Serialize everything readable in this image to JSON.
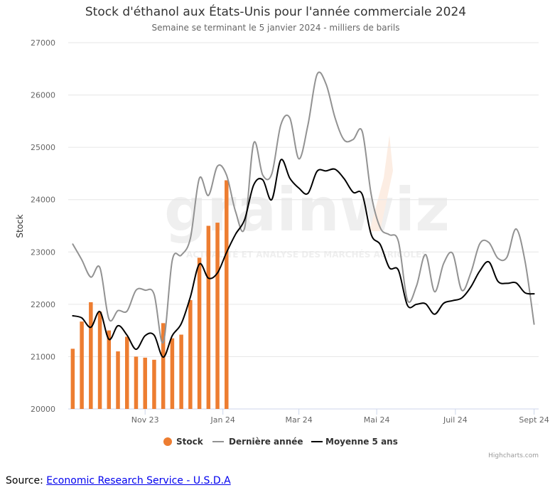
{
  "chart_data": {
    "type": "bar+line",
    "title": "Stock d'éthanol aux États-Unis pour l'année commerciale 2024",
    "subtitle": "Semaine se terminant le 5 janvier 2024 - milliers de barils",
    "ylabel": "Stock",
    "ylim": [
      20000,
      27000
    ],
    "yticks": [
      "20000",
      "21000",
      "22000",
      "23000",
      "24000",
      "25000",
      "26000",
      "27000"
    ],
    "xticks": [
      {
        "label": "Nov 23",
        "week": 9
      },
      {
        "label": "Jan 24",
        "week": 17.6
      },
      {
        "label": "Mar 24",
        "week": 26
      },
      {
        "label": "Mai 24",
        "week": 34.6
      },
      {
        "label": "Juil 24",
        "week": 43.3
      },
      {
        "label": "Sept 24",
        "week": 52
      }
    ],
    "series": [
      {
        "name": "Stock",
        "kind": "bar",
        "color": "#ed7d31",
        "values": [
          21150,
          21670,
          22040,
          21860,
          21500,
          21100,
          21380,
          21000,
          20980,
          20940,
          21640,
          21350,
          21420,
          22080,
          22890,
          23500,
          23560,
          24370
        ]
      },
      {
        "name": "Dernière année",
        "kind": "line",
        "color": "#929292",
        "values": [
          23150,
          22850,
          22520,
          22700,
          21720,
          21880,
          21870,
          22270,
          22270,
          22190,
          21270,
          22840,
          22940,
          23260,
          24410,
          24080,
          24640,
          24470,
          23770,
          23460,
          25080,
          24470,
          24490,
          25430,
          25560,
          24780,
          25430,
          26390,
          26210,
          25560,
          25140,
          25150,
          25300,
          24090,
          23460,
          23330,
          23200,
          22080,
          22350,
          22950,
          22240,
          22780,
          22970,
          22270,
          22600,
          23160,
          23180,
          22880,
          22900,
          23440,
          22820,
          21620
        ]
      },
      {
        "name": "Moyenne 5 ans",
        "kind": "line",
        "color": "#000000",
        "values": [
          21780,
          21740,
          21560,
          21860,
          21330,
          21590,
          21410,
          21140,
          21400,
          21410,
          20990,
          21400,
          21630,
          22140,
          22770,
          22500,
          22600,
          22990,
          23340,
          23620,
          24280,
          24380,
          24000,
          24760,
          24410,
          24220,
          24120,
          24540,
          24550,
          24580,
          24400,
          24140,
          24100,
          23330,
          23140,
          22700,
          22650,
          21980,
          22000,
          22010,
          21810,
          22020,
          22070,
          22120,
          22330,
          22640,
          22810,
          22440,
          22400,
          22410,
          22220,
          22200
        ]
      }
    ],
    "legend": {
      "placement": "bottom"
    },
    "grid": true
  },
  "watermark": {
    "brand": "grainwiz",
    "tagline": "ACTUALITÉ ET ANALYSE DES MARCHÉS AGRICOLES"
  },
  "credits": "Highcharts.com",
  "source": {
    "prefix": "Source: ",
    "link_text": "Economic Research Service - U.S.D.A"
  }
}
